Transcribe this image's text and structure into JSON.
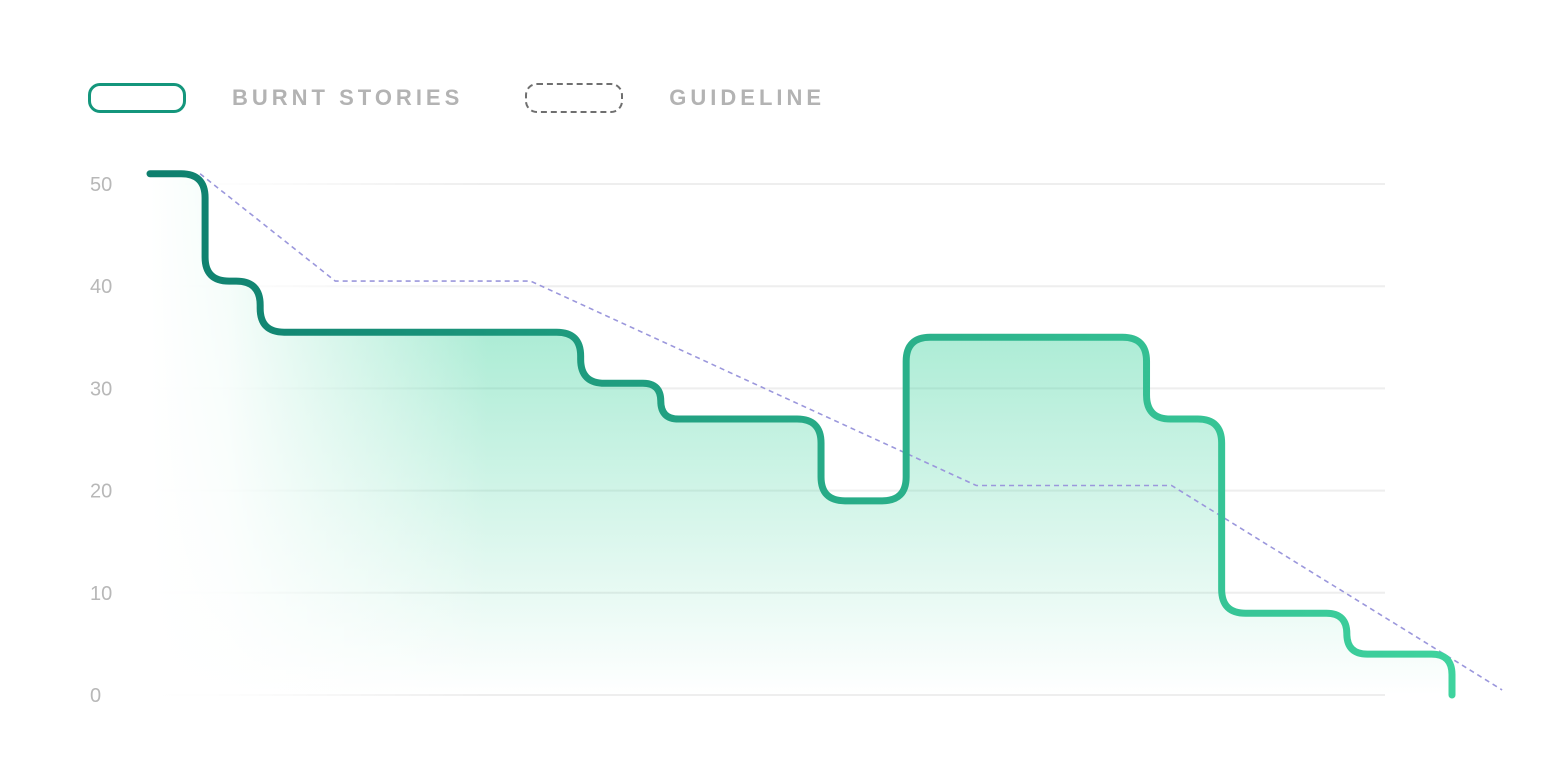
{
  "legend": [
    {
      "label": "BURNT STORIES",
      "style": "solid",
      "color": "#14967c"
    },
    {
      "label": "GUIDELINE",
      "style": "dashed",
      "color": "#6f6f6f"
    }
  ],
  "chart_data": {
    "type": "line",
    "title": "",
    "xlabel": "",
    "ylabel": "",
    "ylim": [
      0,
      50
    ],
    "xlim": [
      0,
      13
    ],
    "yticks": [
      0,
      10,
      20,
      30,
      40,
      50
    ],
    "grid": true,
    "legend_position": "top-left",
    "series": [
      {
        "name": "BURNT STORIES",
        "interpolation": "step",
        "fill": "gradient",
        "colors": [
          "#0e7f6e",
          "#3fd39e"
        ],
        "x": [
          0,
          0.55,
          1.1,
          4.3,
          5.1,
          6.7,
          7.55,
          9.95,
          10.7,
          11.95,
          13.0
        ],
        "y": [
          51,
          40.5,
          35.5,
          30.5,
          27,
          19,
          35,
          27,
          8,
          4,
          0
        ]
      },
      {
        "name": "GUIDELINE",
        "style": "dashed",
        "color": "#9b97dc",
        "x": [
          0.5,
          1.85,
          3.8,
          8.25,
          10.2,
          13.5
        ],
        "y": [
          51,
          40.5,
          40.5,
          20.5,
          20.5,
          0.5
        ]
      }
    ]
  }
}
